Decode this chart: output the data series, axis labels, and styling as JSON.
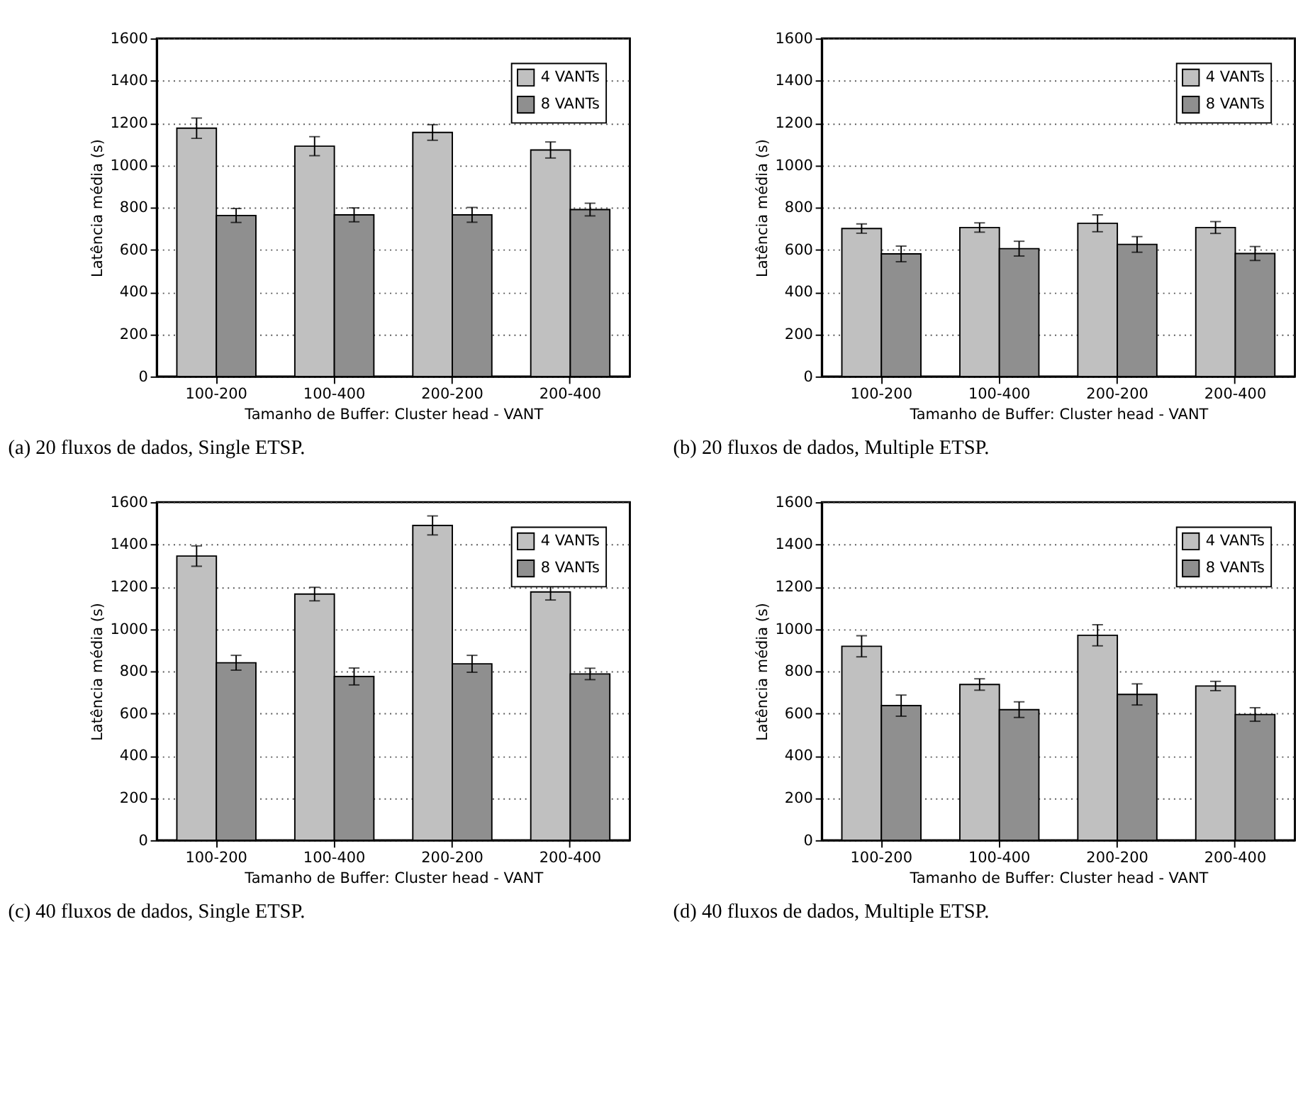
{
  "chart_data": [
    {
      "type": "bar",
      "categories": [
        "100-200",
        "100-400",
        "200-200",
        "200-400"
      ],
      "xlabel": "Tamanho de Buffer: Cluster head - VANT",
      "ylabel": "Latência média (s)",
      "ylim": [
        0,
        1600
      ],
      "yticks": [
        0,
        200,
        400,
        600,
        800,
        1000,
        1200,
        1400,
        1600
      ],
      "grid": "y",
      "legend": "top right",
      "annotations": [
        "(a) 20 fluxos de dados, Single ETSP."
      ],
      "series": [
        {
          "name": "4 VANTs",
          "color": "#c0c0c0",
          "values": [
            1175,
            1090,
            1155,
            1072
          ],
          "errors": [
            48,
            45,
            37,
            38
          ]
        },
        {
          "name": "8 VANTs",
          "color": "#8f8f8f",
          "values": [
            762,
            765,
            765,
            790
          ],
          "errors": [
            33,
            33,
            35,
            30
          ]
        }
      ]
    },
    {
      "type": "bar",
      "categories": [
        "100-200",
        "100-400",
        "200-200",
        "200-400"
      ],
      "xlabel": "Tamanho de Buffer: Cluster head - VANT",
      "ylabel": "Latência média (s)",
      "ylim": [
        0,
        1600
      ],
      "yticks": [
        0,
        200,
        400,
        600,
        800,
        1000,
        1200,
        1400,
        1600
      ],
      "grid": "y",
      "legend": "top right",
      "annotations": [
        "(b) 20 fluxos de dados, Multiple ETSP."
      ],
      "series": [
        {
          "name": "4 VANTs",
          "color": "#c0c0c0",
          "values": [
            700,
            705,
            725,
            705
          ],
          "errors": [
            22,
            22,
            40,
            28
          ]
        },
        {
          "name": "8 VANTs",
          "color": "#8f8f8f",
          "values": [
            580,
            605,
            625,
            582
          ],
          "errors": [
            37,
            35,
            37,
            33
          ]
        }
      ]
    },
    {
      "type": "bar",
      "categories": [
        "100-200",
        "100-400",
        "200-200",
        "200-400"
      ],
      "xlabel": "Tamanho de Buffer: Cluster head - VANT",
      "ylabel": "Latência média (s)",
      "ylim": [
        0,
        1600
      ],
      "yticks": [
        0,
        200,
        400,
        600,
        800,
        1000,
        1200,
        1400,
        1600
      ],
      "grid": "y",
      "legend": "top right",
      "annotations": [
        "(c) 40 fluxos de dados, Single ETSP."
      ],
      "series": [
        {
          "name": "4 VANTs",
          "color": "#c0c0c0",
          "values": [
            1345,
            1165,
            1490,
            1175
          ],
          "errors": [
            48,
            32,
            45,
            38
          ]
        },
        {
          "name": "8 VANTs",
          "color": "#8f8f8f",
          "values": [
            840,
            775,
            835,
            787
          ],
          "errors": [
            35,
            40,
            40,
            27
          ]
        }
      ]
    },
    {
      "type": "bar",
      "categories": [
        "100-200",
        "100-400",
        "200-200",
        "200-400"
      ],
      "xlabel": "Tamanho de Buffer: Cluster head - VANT",
      "ylabel": "Latência média (s)",
      "ylim": [
        0,
        1600
      ],
      "yticks": [
        0,
        200,
        400,
        600,
        800,
        1000,
        1200,
        1400,
        1600
      ],
      "grid": "y",
      "legend": "top right",
      "annotations": [
        "(d) 40 fluxos de dados, Multiple ETSP."
      ],
      "series": [
        {
          "name": "4 VANTs",
          "color": "#c0c0c0",
          "values": [
            918,
            737,
            970,
            730
          ],
          "errors": [
            50,
            27,
            50,
            22
          ]
        },
        {
          "name": "8 VANTs",
          "color": "#8f8f8f",
          "values": [
            637,
            618,
            690,
            595
          ],
          "errors": [
            50,
            37,
            50,
            32
          ]
        }
      ]
    }
  ]
}
